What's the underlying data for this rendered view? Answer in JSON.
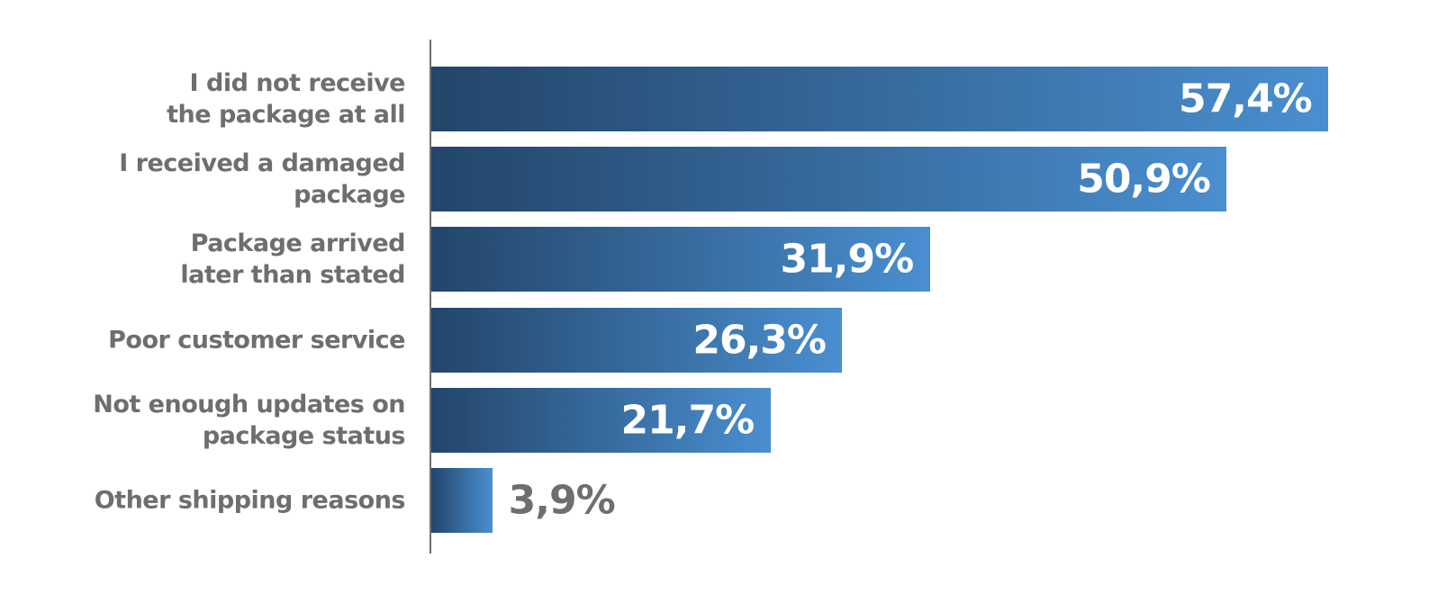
{
  "chart_data": {
    "type": "hbar",
    "categories": [
      "I did not receive\nthe package at all",
      "I received a damaged\npackage",
      "Package arrived\nlater than stated",
      "Poor customer service",
      "Not enough updates on\npackage status",
      "Other shipping reasons"
    ],
    "values": [
      57.4,
      50.9,
      31.9,
      26.3,
      21.7,
      3.9
    ],
    "value_labels": [
      "57,4%",
      "50,9%",
      "31,9%",
      "26,3%",
      "21,7%",
      "3,9%"
    ],
    "color": [
      "#23456a",
      "#4a8fd0"
    ]
  }
}
